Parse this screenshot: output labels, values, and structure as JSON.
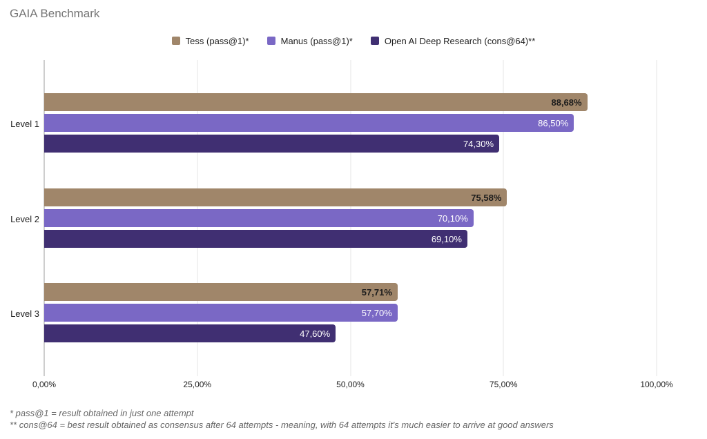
{
  "title": "GAIA Benchmark",
  "colors": {
    "background": "#ffffff",
    "title_text": "#757575",
    "axis_line": "#9e9e9e",
    "gridline": "#e4e4e4",
    "tick_label_text": "#212121",
    "category_label_text": "#212121",
    "footnote_text": "#666666"
  },
  "legend": {
    "position": "top-center",
    "items": [
      {
        "label": "Tess (pass@1)*",
        "color": "#a0866a"
      },
      {
        "label": "Manus (pass@1)*",
        "color": "#7a68c5"
      },
      {
        "label": "Open AI Deep Research (cons@64)**",
        "color": "#402f72"
      }
    ]
  },
  "chart_data": {
    "type": "bar",
    "orientation": "horizontal",
    "title": "GAIA Benchmark",
    "xlabel": "",
    "ylabel": "",
    "xlim": [
      0,
      100
    ],
    "grid": true,
    "categories": [
      "Level 1",
      "Level 2",
      "Level 3"
    ],
    "series": [
      {
        "name": "Tess (pass@1)*",
        "color": "#a0866a",
        "values": [
          88.68,
          75.58,
          57.71
        ],
        "labels": [
          "88,68%",
          "75,58%",
          "57,71%"
        ],
        "label_color": "#1c1c1c",
        "label_weight": "700"
      },
      {
        "name": "Manus (pass@1)*",
        "color": "#7a68c5",
        "values": [
          86.5,
          70.1,
          57.7
        ],
        "labels": [
          "86,50%",
          "70,10%",
          "57,70%"
        ],
        "label_color": "#ffffff",
        "label_weight": "400"
      },
      {
        "name": "Open AI Deep Research (cons@64)**",
        "color": "#402f72",
        "values": [
          74.3,
          69.1,
          47.6
        ],
        "labels": [
          "74,30%",
          "69,10%",
          "47,60%"
        ],
        "label_color": "#ffffff",
        "label_weight": "400"
      }
    ],
    "x_ticks": [
      {
        "value": 0,
        "label": "0,00%"
      },
      {
        "value": 25,
        "label": "25,00%"
      },
      {
        "value": 50,
        "label": "50,00%"
      },
      {
        "value": 75,
        "label": "75,00%"
      },
      {
        "value": 100,
        "label": "100,00%"
      }
    ]
  },
  "footnotes": {
    "line1": "* pass@1 = result obtained in just one attempt",
    "line2": "** cons@64 = best result obtained as consensus after 64 attempts - meaning, with 64 attempts it's much easier to arrive at good answers"
  }
}
